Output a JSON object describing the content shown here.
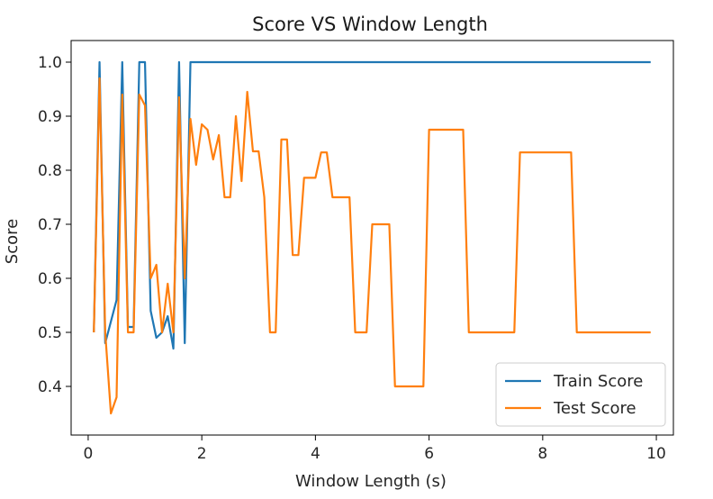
{
  "chart_data": {
    "type": "line",
    "title": "Score VS Window Length",
    "xlabel": "Window Length (s)",
    "ylabel": "Score",
    "xlim": [
      -0.3,
      10.3
    ],
    "ylim": [
      0.31,
      1.04
    ],
    "xticks": [
      0,
      2,
      4,
      6,
      8,
      10
    ],
    "yticks": [
      0.4,
      0.5,
      0.6,
      0.7,
      0.8,
      0.9,
      1.0
    ],
    "xtick_labels": [
      "0",
      "2",
      "4",
      "6",
      "8",
      "10"
    ],
    "ytick_labels": [
      "0.4",
      "0.5",
      "0.6",
      "0.7",
      "0.8",
      "0.9",
      "1.0"
    ],
    "grid": false,
    "legend_position": "lower-right",
    "series": [
      {
        "name": "Train Score",
        "color": "#1f77b4",
        "x": [
          0.1,
          0.2,
          0.3,
          0.4,
          0.5,
          0.6,
          0.7,
          0.8,
          0.9,
          1.0,
          1.1,
          1.2,
          1.3,
          1.4,
          1.5,
          1.6,
          1.7,
          1.8,
          1.9,
          2.0,
          2.5,
          3.0,
          4.0,
          5.0,
          6.0,
          7.0,
          8.0,
          9.0,
          9.9
        ],
        "y": [
          0.5,
          1.0,
          0.48,
          0.52,
          0.56,
          1.0,
          0.51,
          0.51,
          1.0,
          1.0,
          0.54,
          0.49,
          0.5,
          0.53,
          0.47,
          1.0,
          0.48,
          1.0,
          1.0,
          1.0,
          1.0,
          1.0,
          1.0,
          1.0,
          1.0,
          1.0,
          1.0,
          1.0,
          1.0
        ]
      },
      {
        "name": "Test Score",
        "color": "#ff7f0e",
        "x": [
          0.1,
          0.2,
          0.3,
          0.4,
          0.5,
          0.6,
          0.7,
          0.8,
          0.9,
          1.0,
          1.1,
          1.2,
          1.3,
          1.4,
          1.5,
          1.6,
          1.7,
          1.8,
          1.9,
          2.0,
          2.1,
          2.2,
          2.3,
          2.4,
          2.5,
          2.6,
          2.7,
          2.8,
          2.9,
          3.0,
          3.1,
          3.2,
          3.3,
          3.4,
          3.5,
          3.6,
          3.7,
          3.8,
          3.9,
          4.0,
          4.1,
          4.2,
          4.3,
          4.4,
          4.5,
          4.6,
          4.7,
          4.8,
          4.9,
          5.0,
          5.1,
          5.2,
          5.3,
          5.4,
          5.5,
          5.6,
          5.7,
          5.8,
          5.9,
          6.0,
          6.1,
          6.2,
          6.3,
          6.4,
          6.5,
          6.6,
          6.7,
          6.8,
          6.9,
          7.0,
          7.1,
          7.2,
          7.3,
          7.4,
          7.5,
          7.6,
          7.7,
          7.8,
          7.9,
          8.0,
          8.1,
          8.2,
          8.3,
          8.4,
          8.5,
          8.6,
          8.7,
          8.8,
          8.9,
          9.0,
          9.1,
          9.2,
          9.3,
          9.4,
          9.5,
          9.6,
          9.7,
          9.8,
          9.9
        ],
        "y": [
          0.5,
          0.97,
          0.5,
          0.35,
          0.38,
          0.94,
          0.5,
          0.5,
          0.94,
          0.92,
          0.6,
          0.625,
          0.5,
          0.59,
          0.5,
          0.935,
          0.6,
          0.895,
          0.81,
          0.885,
          0.875,
          0.82,
          0.865,
          0.75,
          0.75,
          0.9,
          0.78,
          0.945,
          0.835,
          0.835,
          0.75,
          0.5,
          0.5,
          0.857,
          0.857,
          0.643,
          0.643,
          0.786,
          0.786,
          0.786,
          0.833,
          0.833,
          0.75,
          0.75,
          0.75,
          0.75,
          0.5,
          0.5,
          0.5,
          0.7,
          0.7,
          0.7,
          0.7,
          0.4,
          0.4,
          0.4,
          0.4,
          0.4,
          0.4,
          0.875,
          0.875,
          0.875,
          0.875,
          0.875,
          0.875,
          0.875,
          0.5,
          0.5,
          0.5,
          0.5,
          0.5,
          0.5,
          0.5,
          0.5,
          0.5,
          0.833,
          0.833,
          0.833,
          0.833,
          0.833,
          0.833,
          0.833,
          0.833,
          0.833,
          0.833,
          0.5,
          0.5,
          0.5,
          0.5,
          0.5,
          0.5,
          0.5,
          0.5,
          0.5,
          0.5,
          0.5,
          0.5,
          0.5,
          0.5
        ]
      }
    ]
  }
}
